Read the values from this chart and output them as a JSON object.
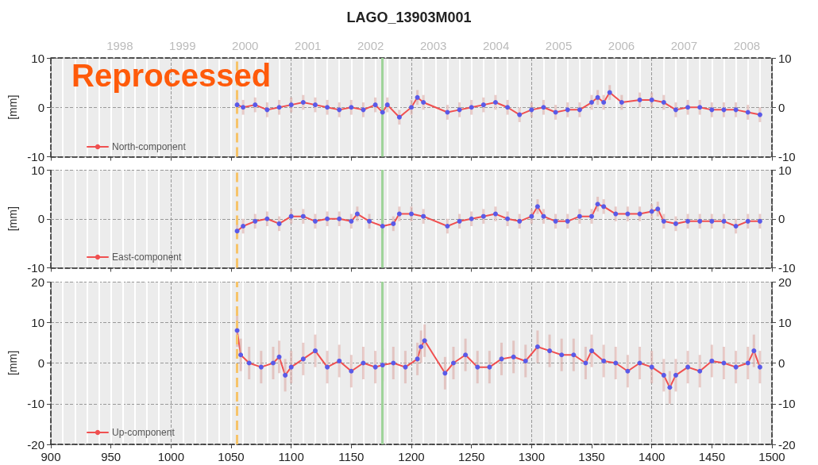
{
  "chart_data": [
    {
      "type": "line",
      "title": "LAGO_13903M001",
      "ylabel": "[mm]",
      "annotations": [
        "Reprocessed"
      ],
      "legend": "bottom left",
      "grid": true,
      "line_style": "solid",
      "tick_labels": "y",
      "xlim": [
        900,
        1500
      ],
      "xticks": [
        900,
        950,
        1000,
        1050,
        1100,
        1150,
        1200,
        1250,
        1300,
        1350,
        1400,
        1450,
        1500
      ],
      "x2lim": [
        1996.9,
        2008.4
      ],
      "x2ticks": [
        1998,
        1999,
        2000,
        2001,
        2002,
        2003,
        2004,
        2005,
        2006,
        2007,
        2008
      ],
      "ylim": [
        -10,
        10
      ],
      "yticks": [
        -10,
        0,
        10
      ],
      "y2lim": [
        -10,
        10
      ],
      "y2ticks": [
        -10,
        0,
        10
      ],
      "ref_lines": [
        {
          "axis": "x",
          "value": 1055,
          "color": "#f7c46a",
          "line_style": "dashed"
        },
        {
          "axis": "x",
          "value": 1176,
          "color": "#9fd49a",
          "line_style": "solid"
        }
      ],
      "series": [
        {
          "name": "North-component",
          "color": "#f05050",
          "x": [
            1055,
            1060,
            1070,
            1080,
            1090,
            1100,
            1110,
            1120,
            1130,
            1140,
            1150,
            1160,
            1170,
            1176,
            1180,
            1190,
            1200,
            1205,
            1210,
            1230,
            1240,
            1250,
            1260,
            1270,
            1280,
            1290,
            1300,
            1310,
            1320,
            1330,
            1340,
            1350,
            1355,
            1360,
            1365,
            1375,
            1390,
            1400,
            1410,
            1420,
            1430,
            1440,
            1450,
            1460,
            1470,
            1480,
            1490
          ],
          "values": [
            0.5,
            0,
            0.5,
            -0.5,
            0,
            0.5,
            1,
            0.5,
            0,
            -0.5,
            0,
            -0.5,
            0.5,
            -1,
            0.5,
            -2,
            0,
            2,
            1,
            -1,
            -0.5,
            0,
            0.5,
            1,
            0,
            -1.5,
            -0.5,
            0,
            -1,
            -0.5,
            -0.5,
            1,
            2,
            1,
            3,
            1,
            1.5,
            1.5,
            1,
            -0.5,
            0,
            0,
            -0.5,
            -0.5,
            -0.5,
            -1,
            -1.5
          ]
        },
        {
          "type": "scatter",
          "color": "#5a5ae8",
          "marker": "circle",
          "x": [
            1055,
            1060,
            1070,
            1080,
            1090,
            1100,
            1110,
            1120,
            1130,
            1140,
            1150,
            1160,
            1170,
            1176,
            1180,
            1190,
            1200,
            1205,
            1210,
            1230,
            1240,
            1250,
            1260,
            1270,
            1280,
            1290,
            1300,
            1310,
            1320,
            1330,
            1340,
            1350,
            1355,
            1360,
            1365,
            1375,
            1390,
            1400,
            1410,
            1420,
            1430,
            1440,
            1450,
            1460,
            1470,
            1480,
            1490
          ],
          "values": [
            0.5,
            0,
            0.5,
            -0.5,
            0,
            0.5,
            1,
            0.5,
            0,
            -0.5,
            0,
            -0.5,
            0.5,
            -1,
            0.5,
            -2,
            0,
            2,
            1,
            -1,
            -0.5,
            0,
            0.5,
            1,
            0,
            -1.5,
            -0.5,
            0,
            -1,
            -0.5,
            -0.5,
            1,
            2,
            1,
            3,
            1,
            1.5,
            1.5,
            1,
            -0.5,
            0,
            0,
            -0.5,
            -0.5,
            -0.5,
            -1,
            -1.5
          ],
          "errors": [
            1.5,
            1.5,
            1.5,
            1.5,
            1.5,
            1.5,
            1.5,
            1.5,
            1.5,
            1.5,
            1.5,
            1.5,
            1.5,
            1.5,
            1.5,
            1.5,
            1.5,
            1.5,
            1.5,
            1.5,
            1.5,
            1.5,
            1.5,
            1.5,
            1.5,
            1.5,
            1.5,
            1.5,
            1.5,
            1.5,
            1.5,
            1.5,
            1.5,
            1.5,
            1.5,
            1.5,
            1.5,
            1.5,
            1.5,
            1.5,
            1.5,
            1.5,
            1.5,
            1.5,
            1.5,
            1.5,
            1.5
          ]
        }
      ]
    },
    {
      "type": "line",
      "ylabel": "[mm]",
      "legend": "bottom left",
      "grid": true,
      "line_style": "solid",
      "tick_labels": "y",
      "xlim": [
        900,
        1500
      ],
      "xticks": [
        900,
        950,
        1000,
        1050,
        1100,
        1150,
        1200,
        1250,
        1300,
        1350,
        1400,
        1450,
        1500
      ],
      "ylim": [
        -10,
        10
      ],
      "yticks": [
        -10,
        0,
        10
      ],
      "y2lim": [
        -10,
        10
      ],
      "y2ticks": [
        -10,
        0,
        10
      ],
      "ref_lines": [
        {
          "axis": "x",
          "value": 1055,
          "color": "#f7c46a",
          "line_style": "dashed"
        },
        {
          "axis": "x",
          "value": 1176,
          "color": "#9fd49a",
          "line_style": "solid"
        }
      ],
      "series": [
        {
          "name": "East-component",
          "color": "#f05050",
          "x": [
            1055,
            1060,
            1070,
            1080,
            1090,
            1100,
            1110,
            1120,
            1130,
            1140,
            1150,
            1155,
            1165,
            1176,
            1185,
            1190,
            1200,
            1210,
            1230,
            1240,
            1250,
            1260,
            1270,
            1280,
            1290,
            1300,
            1305,
            1310,
            1320,
            1330,
            1340,
            1350,
            1355,
            1360,
            1370,
            1380,
            1390,
            1400,
            1405,
            1410,
            1420,
            1430,
            1440,
            1450,
            1460,
            1470,
            1480,
            1490
          ],
          "values": [
            -2.5,
            -1.5,
            -0.5,
            0,
            -1,
            0.5,
            0.5,
            -0.5,
            0,
            0,
            -0.5,
            1,
            -0.5,
            -1.5,
            -1,
            1,
            1,
            0.5,
            -1.5,
            -0.5,
            0,
            0.5,
            1,
            0,
            -0.5,
            0.5,
            2.5,
            0.5,
            -0.5,
            -0.5,
            0.5,
            0.5,
            3,
            2.5,
            1,
            1,
            1,
            1.5,
            2,
            -0.5,
            -1,
            -0.5,
            -0.5,
            -0.5,
            -0.5,
            -1.5,
            -0.5,
            -0.5
          ]
        },
        {
          "type": "scatter",
          "color": "#5a5ae8",
          "marker": "circle",
          "x": [
            1055,
            1060,
            1070,
            1080,
            1090,
            1100,
            1110,
            1120,
            1130,
            1140,
            1150,
            1155,
            1165,
            1176,
            1185,
            1190,
            1200,
            1210,
            1230,
            1240,
            1250,
            1260,
            1270,
            1280,
            1290,
            1300,
            1305,
            1310,
            1320,
            1330,
            1340,
            1350,
            1355,
            1360,
            1370,
            1380,
            1390,
            1400,
            1405,
            1410,
            1420,
            1430,
            1440,
            1450,
            1460,
            1470,
            1480,
            1490
          ],
          "values": [
            -2.5,
            -1.5,
            -0.5,
            0,
            -1,
            0.5,
            0.5,
            -0.5,
            0,
            0,
            -0.5,
            1,
            -0.5,
            -1.5,
            -1,
            1,
            1,
            0.5,
            -1.5,
            -0.5,
            0,
            0.5,
            1,
            0,
            -0.5,
            0.5,
            2.5,
            0.5,
            -0.5,
            -0.5,
            0.5,
            0.5,
            3,
            2.5,
            1,
            1,
            1,
            1.5,
            2,
            -0.5,
            -1,
            -0.5,
            -0.5,
            -0.5,
            -0.5,
            -1.5,
            -0.5,
            -0.5
          ],
          "errors": [
            1.5,
            1.5,
            1.5,
            1.5,
            1.5,
            1.5,
            1.5,
            1.5,
            1.5,
            1.5,
            1.5,
            1.5,
            1.5,
            1.5,
            1.5,
            1.5,
            1.5,
            1.5,
            1.5,
            1.5,
            1.5,
            1.5,
            1.5,
            1.5,
            1.5,
            1.5,
            1.5,
            1.5,
            1.5,
            1.5,
            1.5,
            1.5,
            1.5,
            1.5,
            1.5,
            1.5,
            1.5,
            1.5,
            1.5,
            1.5,
            1.5,
            1.5,
            1.5,
            1.5,
            1.5,
            1.5,
            1.5,
            1.5
          ]
        }
      ]
    },
    {
      "type": "line",
      "ylabel": "[mm]",
      "legend": "bottom left",
      "grid": true,
      "line_style": "solid",
      "xlim": [
        900,
        1500
      ],
      "xticks": [
        900,
        950,
        1000,
        1050,
        1100,
        1150,
        1200,
        1250,
        1300,
        1350,
        1400,
        1450,
        1500
      ],
      "ylim": [
        -20,
        20
      ],
      "yticks": [
        -20,
        -10,
        0,
        10,
        20
      ],
      "y2lim": [
        -20,
        20
      ],
      "y2ticks": [
        -20,
        -10,
        0,
        10,
        20
      ],
      "ref_lines": [
        {
          "axis": "x",
          "value": 1055,
          "color": "#f7c46a",
          "line_style": "dashed"
        },
        {
          "axis": "x",
          "value": 1176,
          "color": "#9fd49a",
          "line_style": "solid"
        }
      ],
      "series": [
        {
          "name": "Up-component",
          "color": "#f05050",
          "x": [
            1055,
            1058,
            1065,
            1075,
            1085,
            1090,
            1095,
            1100,
            1110,
            1120,
            1130,
            1140,
            1150,
            1160,
            1170,
            1176,
            1185,
            1195,
            1205,
            1208,
            1211,
            1228,
            1235,
            1245,
            1255,
            1265,
            1275,
            1285,
            1295,
            1305,
            1315,
            1325,
            1335,
            1345,
            1350,
            1360,
            1370,
            1380,
            1390,
            1400,
            1410,
            1415,
            1420,
            1430,
            1440,
            1450,
            1460,
            1470,
            1480,
            1485,
            1490
          ],
          "values": [
            8,
            2,
            0,
            -1,
            0,
            1.5,
            -3,
            -1,
            1,
            3,
            -1,
            0.5,
            -2,
            0,
            -1,
            -0.5,
            0,
            -1,
            1,
            4,
            5.5,
            -2.5,
            0,
            2,
            -1,
            -1,
            1,
            1.5,
            0.5,
            4,
            3,
            2,
            2,
            0,
            3,
            0.5,
            0,
            -2,
            0,
            -1,
            -3,
            -6,
            -3,
            -1,
            -2,
            0.5,
            0,
            -1,
            0,
            3,
            -1
          ]
        },
        {
          "type": "scatter",
          "color": "#5a5ae8",
          "marker": "circle",
          "x": [
            1055,
            1058,
            1065,
            1075,
            1085,
            1090,
            1095,
            1100,
            1110,
            1120,
            1130,
            1140,
            1150,
            1160,
            1170,
            1176,
            1185,
            1195,
            1205,
            1208,
            1211,
            1228,
            1235,
            1245,
            1255,
            1265,
            1275,
            1285,
            1295,
            1305,
            1315,
            1325,
            1335,
            1345,
            1350,
            1360,
            1370,
            1380,
            1390,
            1400,
            1410,
            1415,
            1420,
            1430,
            1440,
            1450,
            1460,
            1470,
            1480,
            1485,
            1490
          ],
          "values": [
            8,
            2,
            0,
            -1,
            0,
            1.5,
            -3,
            -1,
            1,
            3,
            -1,
            0.5,
            -2,
            0,
            -1,
            -0.5,
            0,
            -1,
            1,
            4,
            5.5,
            -2.5,
            0,
            2,
            -1,
            -1,
            1,
            1.5,
            0.5,
            4,
            3,
            2,
            2,
            0,
            3,
            0.5,
            0,
            -2,
            0,
            -1,
            -3,
            -6,
            -3,
            -1,
            -2,
            0.5,
            0,
            -1,
            0,
            3,
            -1
          ],
          "errors": [
            4,
            4,
            4,
            4,
            4,
            4,
            4,
            4,
            4,
            4,
            4,
            4,
            4,
            4,
            4,
            4,
            4,
            4,
            4,
            4,
            4,
            4,
            4,
            4,
            4,
            4,
            4,
            4,
            4,
            4,
            4,
            4,
            4,
            4,
            4,
            4,
            4,
            4,
            4,
            4,
            4,
            4,
            4,
            4,
            4,
            4,
            4,
            4,
            4,
            4,
            4
          ]
        }
      ]
    }
  ]
}
